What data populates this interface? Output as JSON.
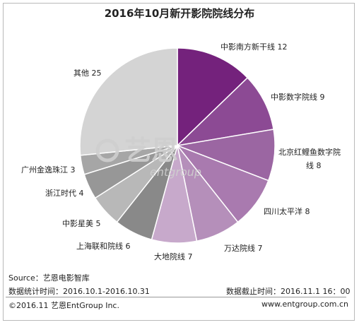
{
  "chart_data": {
    "type": "pie",
    "title": "2016年10月新开影院院线分布",
    "slices": [
      {
        "name": "中影南方新干线",
        "value": 12,
        "label": "中影南方新干线 12",
        "color": "#74227c"
      },
      {
        "name": "中影数字院线",
        "value": 9,
        "label": "中影数字院线 9",
        "color": "#8c4a94"
      },
      {
        "name": "北京红鲤鱼数字院线",
        "value": 8,
        "label": "北京红鲤鱼数字院线 8",
        "color": "#9b66a2"
      },
      {
        "name": "四川太平洋",
        "value": 8,
        "label": "四川太平洋 8",
        "color": "#a97aaf"
      },
      {
        "name": "万达院线",
        "value": 7,
        "label": "万达院线 7",
        "color": "#b58fba"
      },
      {
        "name": "大地院线",
        "value": 7,
        "label": "大地院线 7",
        "color": "#c7a9cb"
      },
      {
        "name": "上海联和院线",
        "value": 6,
        "label": "上海联和院线 6",
        "color": "#898989"
      },
      {
        "name": "中影星美",
        "value": 5,
        "label": "中影星美 5",
        "color": "#b8b8b8"
      },
      {
        "name": "浙江时代",
        "value": 4,
        "label": "浙江时代 4",
        "color": "#979797"
      },
      {
        "name": "广州金逸珠江",
        "value": 3,
        "label": "广州金逸珠江 3",
        "color": "#a6a6a6"
      },
      {
        "name": "其他",
        "value": 25,
        "label": "其他 25",
        "color": "#d4d4d4"
      }
    ]
  },
  "watermark": {
    "brand": "艺恩",
    "sub": "entgroup"
  },
  "source": {
    "line1": "Source：艺恩电影智库",
    "line2": "数据统计时间：2016.10.1-2016.10.31",
    "cutoff": "数据截止时间：2016.11.1  16：00"
  },
  "footer": {
    "copyright": "©2016.11 艺恩EntGroup Inc.",
    "website": "www.entgroup.com.cn"
  }
}
